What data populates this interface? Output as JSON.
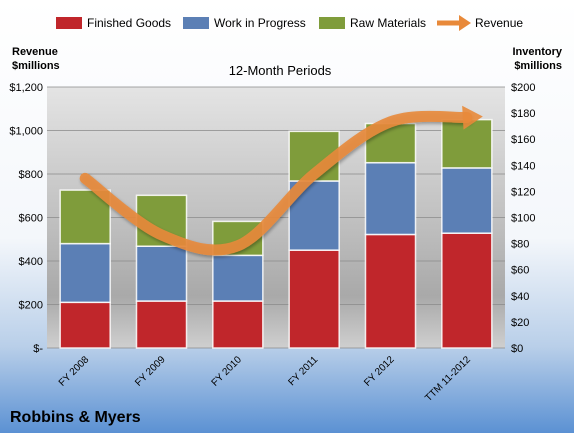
{
  "chart_data": {
    "type": "bar",
    "stacked": true,
    "title": "12-Month Periods",
    "company": "Robbins & Myers",
    "left_axis_label": [
      "Revenue",
      "$millions"
    ],
    "right_axis_label": [
      "Inventory",
      "$millions"
    ],
    "categories": [
      "FY 2008",
      "FY 2009",
      "FY 2010",
      "FY 2011",
      "FY 2012",
      "TTM 11-2012"
    ],
    "series": [
      {
        "name": "Finished Goods",
        "axis": "right",
        "color": "#c0262b",
        "values": [
          35,
          36,
          36,
          75,
          87,
          88
        ]
      },
      {
        "name": "Work in Progress",
        "axis": "right",
        "color": "#5b7fb5",
        "values": [
          45,
          42,
          35,
          53,
          55,
          50
        ]
      },
      {
        "name": "Raw Materials",
        "axis": "right",
        "color": "#7f9c3b",
        "values": [
          41,
          39,
          26,
          38,
          30,
          37
        ]
      }
    ],
    "line": {
      "name": "Revenue",
      "axis": "left",
      "color": "#e8893a",
      "values": [
        780,
        520,
        470,
        800,
        1040,
        1060
      ]
    },
    "left_axis": {
      "min": 0,
      "max": 1200,
      "ticks": [
        "$-",
        "$200",
        "$400",
        "$600",
        "$800",
        "$1,000",
        "$1,200"
      ]
    },
    "right_axis": {
      "min": 0,
      "max": 200,
      "ticks": [
        "$0",
        "$20",
        "$40",
        "$60",
        "$80",
        "$100",
        "$120",
        "$140",
        "$160",
        "$180",
        "$200"
      ]
    },
    "grid": true,
    "legend_position": "top"
  }
}
